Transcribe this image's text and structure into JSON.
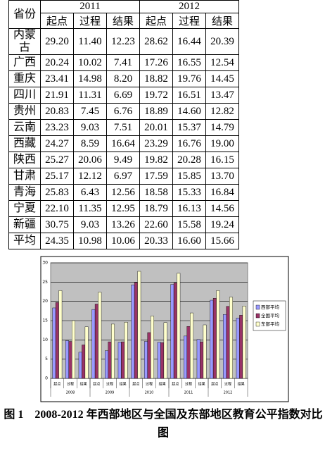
{
  "table": {
    "province_header": "省份",
    "years": [
      "2011",
      "2012"
    ],
    "columns": [
      "起点",
      "过程",
      "结果",
      "起点",
      "过程",
      "结果"
    ],
    "rows": [
      [
        "内蒙古",
        "29.20",
        "11.40",
        "12.23",
        "28.62",
        "16.44",
        "20.39"
      ],
      [
        "广西",
        "20.24",
        "10.02",
        "7.41",
        "17.26",
        "16.55",
        "12.54"
      ],
      [
        "重庆",
        "23.41",
        "14.98",
        "8.20",
        "18.82",
        "19.76",
        "14.45"
      ],
      [
        "四川",
        "21.91",
        "11.31",
        "6.69",
        "19.72",
        "16.51",
        "13.47"
      ],
      [
        "贵州",
        "20.83",
        "7.45",
        "6.76",
        "18.89",
        "14.60",
        "12.82"
      ],
      [
        "云南",
        "23.23",
        "9.03",
        "7.51",
        "20.01",
        "15.37",
        "14.79"
      ],
      [
        "西藏",
        "24.27",
        "8.59",
        "16.64",
        "23.29",
        "16.76",
        "19.00"
      ],
      [
        "陕西",
        "25.27",
        "20.06",
        "9.49",
        "19.82",
        "20.28",
        "16.15"
      ],
      [
        "甘肃",
        "25.17",
        "12.12",
        "6.97",
        "17.59",
        "15.85",
        "13.70"
      ],
      [
        "青海",
        "25.83",
        "6.43",
        "12.56",
        "18.58",
        "15.33",
        "16.84"
      ],
      [
        "宁夏",
        "22.10",
        "11.35",
        "12.95",
        "18.79",
        "16.13",
        "14.56"
      ],
      [
        "新疆",
        "30.75",
        "9.03",
        "13.26",
        "22.60",
        "15.58",
        "19.24"
      ],
      [
        "平均",
        "24.35",
        "10.98",
        "10.06",
        "20.33",
        "16.60",
        "15.66"
      ]
    ]
  },
  "chart_data": {
    "type": "bar",
    "categories": [
      "起点",
      "过程",
      "结果",
      "起点",
      "过程",
      "结果",
      "起点",
      "过程",
      "结果",
      "起点",
      "过程",
      "结果",
      "起点",
      "过程",
      "结果"
    ],
    "groups": [
      "2008",
      "2009",
      "2010",
      "2011",
      "2012"
    ],
    "series": [
      {
        "name": "西部平均",
        "color": "#9999ff",
        "values": [
          18.3,
          9.8,
          6.8,
          17.9,
          7.2,
          9.4,
          24.3,
          9.6,
          9.4,
          24.4,
          11.0,
          10.1,
          20.3,
          16.6,
          15.7
        ]
      },
      {
        "name": "全国平均",
        "color": "#993366",
        "values": [
          19.7,
          9.6,
          8.7,
          19.3,
          9.5,
          9.5,
          24.9,
          11.9,
          9.3,
          24.8,
          13.5,
          9.5,
          20.8,
          18.7,
          16.4
        ]
      },
      {
        "name": "东部平均",
        "color": "#ffffcc",
        "values": [
          22.8,
          15.0,
          13.4,
          22.4,
          14.1,
          14.6,
          27.8,
          16.2,
          14.5,
          27.3,
          17.0,
          13.9,
          22.8,
          21.1,
          18.8
        ]
      }
    ],
    "ylim": [
      0,
      30
    ],
    "yticks": [
      0,
      5,
      10,
      15,
      20,
      25,
      30
    ],
    "grid": true,
    "legend": "right"
  },
  "caption": "图 1　2008-2012 年西部地区与全国及东部地区教育公平指数对比图"
}
